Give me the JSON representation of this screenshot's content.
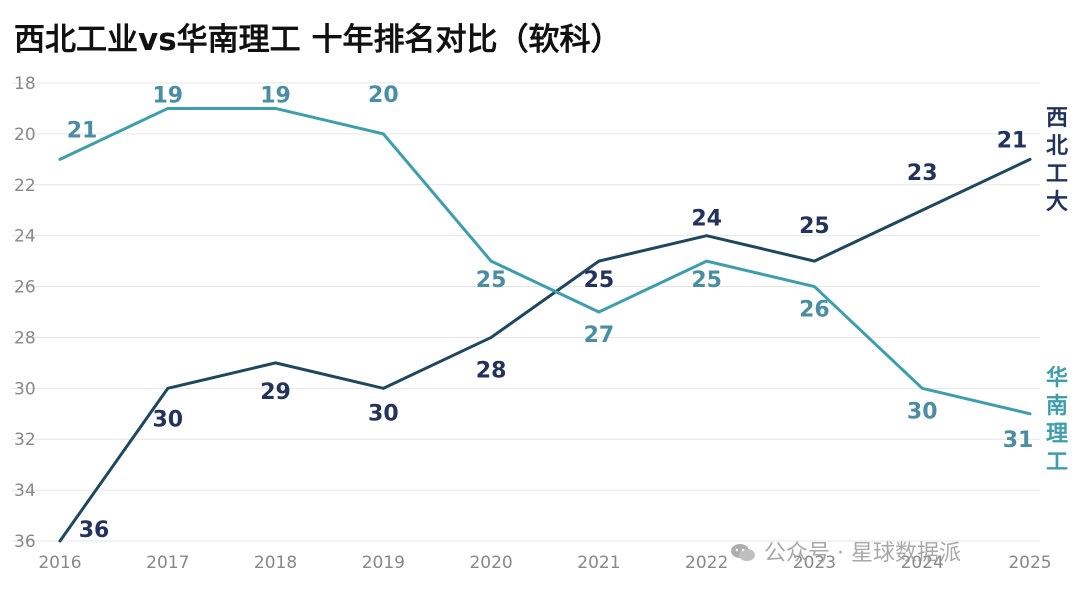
{
  "title": "西北工业vs华南理工  十年排名对比（软科）",
  "colors": {
    "s0": "#1d4860",
    "s1": "#3d9fad",
    "label0": "#23335e",
    "label1": "#4a8ea6",
    "axis": "#888888",
    "grid": "#e6e6e6"
  },
  "chart_data": {
    "type": "line",
    "title": "西北工业vs华南理工  十年排名对比（软科）",
    "x": [
      "2016",
      "2017",
      "2018",
      "2019",
      "2020",
      "2021",
      "2022",
      "2023",
      "2024",
      "2025"
    ],
    "ylim": [
      18,
      36
    ],
    "y_inverted": true,
    "yticks": [
      "18",
      "20",
      "22",
      "24",
      "26",
      "28",
      "30",
      "32",
      "34",
      "36"
    ],
    "grid": true,
    "legend": "right, vertical text",
    "series": [
      {
        "name": "西北工大",
        "values": [
          36,
          30,
          29,
          30,
          28,
          25,
          24,
          25,
          23,
          21
        ]
      },
      {
        "name": "华南理工",
        "values": [
          21,
          19,
          19,
          20,
          25,
          27,
          25,
          26,
          30,
          31
        ]
      }
    ]
  },
  "watermark": {
    "icon": "wechat-icon",
    "text": "公众号 · 星球数据派"
  }
}
